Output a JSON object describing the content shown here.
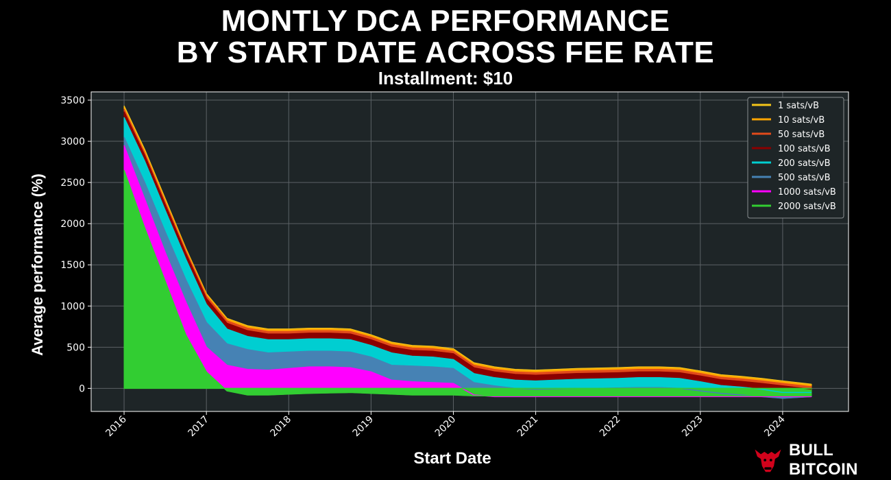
{
  "title_line1": "MONTLY DCA PERFORMANCE",
  "title_line2": "BY START DATE ACROSS FEE RATE",
  "subtitle": "Installment: $10",
  "brand": "BULL BITCOIN",
  "colors": {
    "background": "#000000",
    "plot_background": "#1e2527",
    "grid": "#5c6266"
  },
  "chart_data": {
    "type": "area",
    "title": "MONTLY DCA PERFORMANCE BY START DATE ACROSS FEE RATE",
    "subtitle": "Installment: $10",
    "xlabel": "Start Date",
    "ylabel": "Average performance (%)",
    "xlim": [
      2015.6,
      2024.8
    ],
    "ylim": [
      -280,
      3600
    ],
    "x_ticks": [
      "2016",
      "2017",
      "2018",
      "2019",
      "2020",
      "2021",
      "2022",
      "2023",
      "2024"
    ],
    "y_ticks": [
      0,
      500,
      1000,
      1500,
      2000,
      2500,
      3000,
      3500
    ],
    "grid": true,
    "legend_position": "top-right",
    "x": [
      2016.0,
      2016.25,
      2016.5,
      2016.75,
      2017.0,
      2017.25,
      2017.5,
      2017.75,
      2018.0,
      2018.25,
      2018.5,
      2018.75,
      2019.0,
      2019.25,
      2019.5,
      2019.75,
      2020.0,
      2020.25,
      2020.5,
      2020.75,
      2021.0,
      2021.25,
      2021.5,
      2021.75,
      2022.0,
      2022.25,
      2022.5,
      2022.75,
      2023.0,
      2023.25,
      2023.5,
      2023.75,
      2024.0,
      2024.35
    ],
    "series": [
      {
        "name": "1 sats/vB",
        "color": "#f5c518",
        "values": [
          3430,
          2900,
          2300,
          1700,
          1150,
          850,
          760,
          720,
          720,
          730,
          730,
          720,
          650,
          560,
          520,
          510,
          480,
          310,
          260,
          230,
          220,
          230,
          240,
          245,
          250,
          260,
          260,
          250,
          210,
          165,
          145,
          120,
          90,
          50
        ]
      },
      {
        "name": "10 sats/vB",
        "color": "#ffa500",
        "values": [
          3410,
          2880,
          2280,
          1690,
          1140,
          840,
          750,
          710,
          710,
          720,
          720,
          710,
          640,
          550,
          510,
          500,
          470,
          300,
          250,
          220,
          210,
          220,
          230,
          235,
          240,
          250,
          250,
          240,
          200,
          155,
          135,
          110,
          80,
          40
        ]
      },
      {
        "name": "50 sats/vB",
        "color": "#e24a1a",
        "values": [
          3390,
          2860,
          2260,
          1670,
          1120,
          820,
          730,
          690,
          690,
          700,
          700,
          690,
          620,
          530,
          490,
          480,
          450,
          280,
          230,
          200,
          190,
          200,
          210,
          215,
          220,
          230,
          230,
          220,
          180,
          135,
          115,
          90,
          60,
          20
        ]
      },
      {
        "name": "100 sats/vB",
        "color": "#8b0000",
        "values": [
          3360,
          2830,
          2230,
          1640,
          1090,
          790,
          700,
          660,
          660,
          670,
          670,
          660,
          590,
          500,
          460,
          450,
          420,
          250,
          200,
          170,
          160,
          170,
          180,
          185,
          190,
          200,
          200,
          190,
          150,
          105,
          85,
          60,
          30,
          -10
        ]
      },
      {
        "name": "200 sats/vB",
        "color": "#00ced1",
        "values": [
          3290,
          2760,
          2160,
          1570,
          1020,
          720,
          630,
          590,
          590,
          600,
          600,
          590,
          520,
          430,
          390,
          380,
          350,
          180,
          130,
          100,
          90,
          100,
          110,
          115,
          120,
          130,
          130,
          120,
          80,
          35,
          15,
          -10,
          -50,
          -50
        ]
      },
      {
        "name": "500 sats/vB",
        "color": "#4682b4",
        "values": [
          3050,
          2500,
          1900,
          1320,
          800,
          540,
          470,
          430,
          440,
          450,
          450,
          440,
          380,
          280,
          270,
          260,
          240,
          70,
          30,
          0,
          -10,
          -5,
          0,
          0,
          5,
          10,
          10,
          0,
          -30,
          -60,
          -80,
          -100,
          -120,
          -100
        ]
      },
      {
        "name": "1000 sats/vB",
        "color": "#ff00ff",
        "values": [
          2950,
          2300,
          1650,
          1050,
          500,
          280,
          230,
          220,
          240,
          260,
          260,
          250,
          200,
          100,
          80,
          70,
          60,
          -80,
          -100,
          -100,
          -100,
          -100,
          -100,
          -100,
          -100,
          -100,
          -100,
          -100,
          -100,
          -100,
          -100,
          -100,
          -100,
          -100
        ]
      },
      {
        "name": "2000 sats/vB",
        "color": "#32cd32",
        "values": [
          2650,
          1950,
          1300,
          650,
          200,
          -30,
          -80,
          -80,
          -70,
          -60,
          -55,
          -50,
          -60,
          -70,
          -80,
          -80,
          -80,
          -90,
          -90,
          -90,
          -90,
          -90,
          -90,
          -90,
          -90,
          -90,
          -90,
          -90,
          -90,
          -90,
          -90,
          -90,
          -90,
          -90
        ]
      }
    ]
  }
}
